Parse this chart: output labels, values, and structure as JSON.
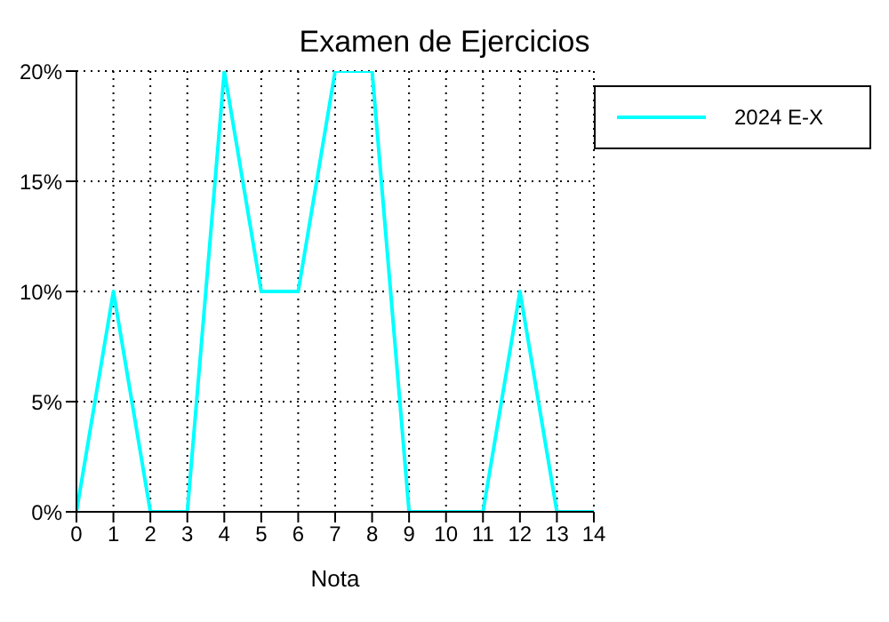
{
  "chart_data": {
    "type": "line",
    "title": "Examen de Ejercicios",
    "xlabel": "Nota",
    "x": [
      0,
      1,
      2,
      3,
      4,
      5,
      6,
      7,
      8,
      9,
      10,
      11,
      12,
      13,
      14
    ],
    "series": [
      {
        "name": "2024 E-X",
        "color": "#00ffff",
        "values": [
          0,
          10,
          0,
          0,
          20,
          10,
          10,
          20,
          20,
          0,
          0,
          0,
          10,
          0,
          0
        ]
      }
    ],
    "xlim": [
      0,
      14
    ],
    "xticks": [
      0,
      1,
      2,
      3,
      4,
      5,
      6,
      7,
      8,
      9,
      10,
      11,
      12,
      13,
      14
    ],
    "ylim": [
      0,
      20
    ],
    "yticks": [
      {
        "value": 0,
        "label": "0%"
      },
      {
        "value": 5,
        "label": "5%"
      },
      {
        "value": 10,
        "label": "10%"
      },
      {
        "value": 15,
        "label": "15%"
      },
      {
        "value": 20,
        "label": "20%"
      }
    ],
    "grid": true,
    "legend": "top right",
    "marker": "none",
    "line_style": "solid"
  }
}
